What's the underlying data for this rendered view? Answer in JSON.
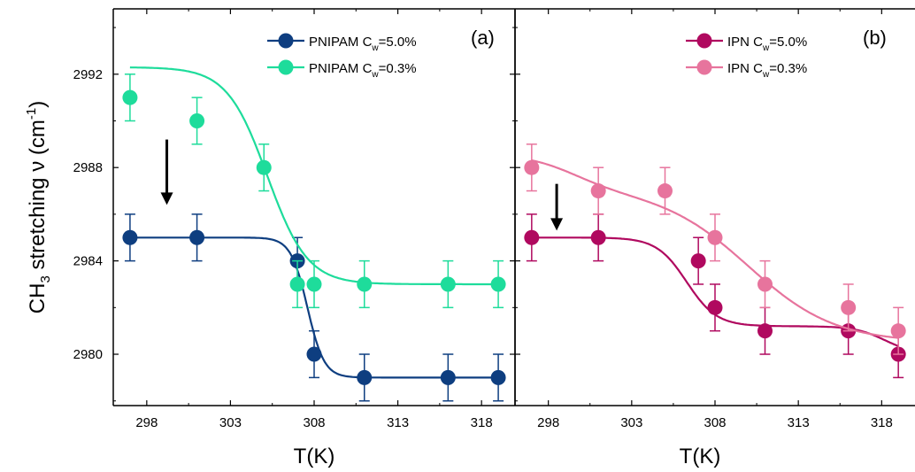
{
  "chart_data": [
    {
      "type": "line",
      "panel_label": "(a)",
      "xlabel": "T(K)",
      "ylabel_parts": [
        "CH",
        "3",
        " stretching ν (cm",
        "-1",
        ")"
      ],
      "xlim": [
        296,
        320
      ],
      "ylim": [
        2977.8,
        2994.8
      ],
      "xticks": [
        298,
        303,
        308,
        313,
        318
      ],
      "yticks": [
        2980,
        2984,
        2988,
        2992
      ],
      "legend_position": "top-right",
      "arrow": {
        "x": 299.2,
        "y_from": 2989.2,
        "y_to": 2986.4
      },
      "series": [
        {
          "name_parts": [
            "PNIPAM C",
            "w",
            "=5.0%"
          ],
          "color": "#0e3e80",
          "x": [
            297,
            301,
            305,
            307,
            308,
            311,
            316,
            319
          ],
          "y": [
            2985,
            2985,
            null,
            2984,
            2980,
            2979,
            2979,
            2979
          ],
          "error": 1,
          "fit": {
            "type": "sigmoid",
            "top": 2985,
            "bottom": 2979,
            "x0": 307.6,
            "dx": 0.5
          }
        },
        {
          "name_parts": [
            "PNIPAM C",
            "w",
            "=0.3%"
          ],
          "color": "#1edc9b",
          "x": [
            297,
            301,
            305,
            307,
            308,
            311,
            316,
            319
          ],
          "y": [
            2991,
            2990,
            2988,
            2983,
            2983,
            2983,
            2983,
            2983
          ],
          "error": 1,
          "fit": {
            "type": "sigmoid",
            "top": 2992.3,
            "bottom": 2983,
            "x0": 305.2,
            "dx": 1.2
          }
        }
      ]
    },
    {
      "type": "line",
      "panel_label": "(b)",
      "xlabel": "T(K)",
      "xlim": [
        296,
        320
      ],
      "ylim": [
        2977.8,
        2994.8
      ],
      "xticks": [
        298,
        303,
        308,
        313,
        318
      ],
      "yticks": [
        2980,
        2984,
        2988,
        2992
      ],
      "legend_position": "top-right",
      "arrow": {
        "x": 298.5,
        "y_from": 2987.3,
        "y_to": 2985.3
      },
      "series": [
        {
          "name_parts": [
            "IPN C",
            "w",
            "=5.0%"
          ],
          "color": "#b0095f",
          "x": [
            297,
            301,
            305,
            307,
            308,
            311,
            316,
            319
          ],
          "y": [
            2985,
            2985,
            null,
            2984,
            2982,
            2981,
            2981,
            2980
          ],
          "error": 1,
          "fit": {
            "type": "double_sigmoid",
            "top": 2985,
            "mid": 2981.2,
            "bottom": 2980,
            "x1": 306.3,
            "dx1": 0.9,
            "x2": 318.2,
            "dx2": 0.9
          }
        },
        {
          "name_parts": [
            "IPN C",
            "w",
            "=0.3%"
          ],
          "color": "#e7749d",
          "x": [
            297,
            301,
            305,
            307,
            308,
            311,
            316,
            319
          ],
          "y": [
            2988,
            2987,
            2987,
            null,
            2985,
            2983,
            2982,
            2981
          ],
          "error": 1,
          "fit": {
            "type": "double_sigmoid",
            "top": 2988.6,
            "mid": 2987.05,
            "bottom": 2980.5,
            "x1": 299.5,
            "dx1": 1.5,
            "x2": 310,
            "dx2": 2.6
          }
        }
      ]
    }
  ]
}
